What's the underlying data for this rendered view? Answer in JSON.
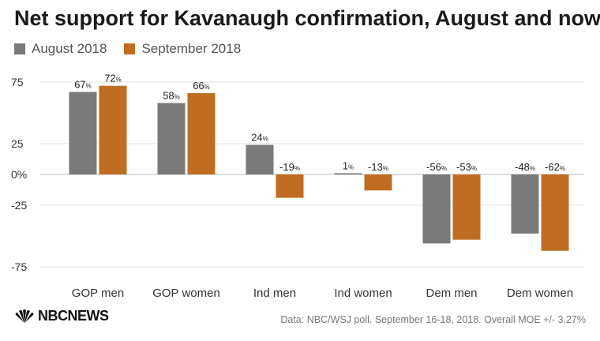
{
  "title": "Net support for Kavanaugh confirmation, August and now",
  "legend": [
    {
      "label": "August 2018",
      "color": "#7a7a7a"
    },
    {
      "label": "September 2018",
      "color": "#c06d21"
    }
  ],
  "logo_text": "NBCNEWS",
  "source": "Data: NBC/WSJ poll. September 16-18, 2018. Overall MOE +/- 3.27%",
  "chart_data": {
    "type": "bar",
    "categories": [
      "GOP men",
      "GOP women",
      "Ind men",
      "Ind women",
      "Dem men",
      "Dem women"
    ],
    "series": [
      {
        "name": "August 2018",
        "color": "#7a7a7a",
        "values": [
          67,
          58,
          24,
          1,
          -56,
          -48
        ]
      },
      {
        "name": "September 2018",
        "color": "#c06d21",
        "values": [
          72,
          66,
          -19,
          -13,
          -53,
          -62
        ]
      }
    ],
    "value_suffix": "%",
    "yticks": [
      75,
      25,
      0,
      -25,
      -75
    ],
    "ytick_labels": [
      "75",
      "25",
      "0%",
      "-25",
      "-75"
    ],
    "ylim": [
      -75,
      75
    ],
    "grid": true,
    "legend_position": "top-left"
  }
}
